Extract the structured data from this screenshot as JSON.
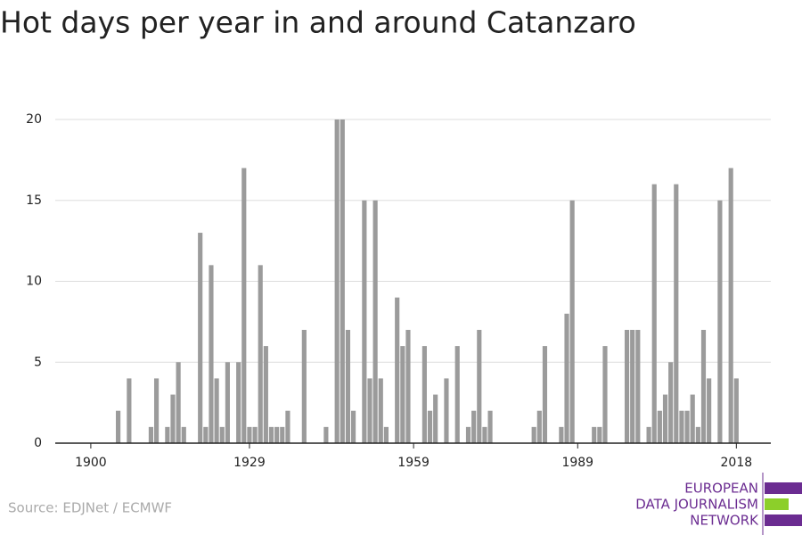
{
  "chart_data": {
    "type": "bar",
    "title": "Hot days per year in and around Catanzaro",
    "source": "Source: EDJNet / ECMWF",
    "logo": [
      "EUROPEAN",
      "DATA JOURNALISM",
      "NETWORK"
    ],
    "color": "#9b9b9b",
    "x": [
      1905,
      1907,
      1911,
      1912,
      1914,
      1915,
      1916,
      1917,
      1920,
      1921,
      1922,
      1923,
      1924,
      1925,
      1927,
      1928,
      1929,
      1930,
      1931,
      1932,
      1933,
      1934,
      1935,
      1936,
      1939,
      1943,
      1945,
      1946,
      1947,
      1948,
      1950,
      1951,
      1952,
      1953,
      1954,
      1956,
      1957,
      1958,
      1961,
      1962,
      1963,
      1965,
      1967,
      1969,
      1970,
      1971,
      1972,
      1973,
      1981,
      1982,
      1983,
      1986,
      1987,
      1988,
      1992,
      1993,
      1994,
      1998,
      1999,
      2000,
      2002,
      2003,
      2004,
      2005,
      2006,
      2007,
      2008,
      2009,
      2010,
      2011,
      2012,
      2013,
      2015,
      2017,
      2018
    ],
    "values": [
      2,
      4,
      1,
      4,
      1,
      3,
      5,
      1,
      13,
      1,
      11,
      4,
      1,
      5,
      5,
      17,
      1,
      1,
      11,
      6,
      1,
      1,
      1,
      2,
      7,
      1,
      20,
      20,
      7,
      2,
      15,
      4,
      15,
      4,
      1,
      9,
      6,
      7,
      6,
      2,
      3,
      4,
      6,
      1,
      2,
      7,
      1,
      2,
      1,
      2,
      6,
      1,
      8,
      15,
      1,
      1,
      6,
      7,
      7,
      7,
      1,
      16,
      2,
      3,
      5,
      16,
      2,
      2,
      3,
      1,
      7,
      4,
      15,
      17,
      4
    ],
    "xlim": [
      1893.5,
      2024.3
    ],
    "xticks": [
      1900,
      1929,
      1959,
      1989,
      2018
    ],
    "ylim": [
      0,
      20
    ],
    "yticks": [
      0,
      5,
      10,
      15,
      20
    ],
    "grid": true
  }
}
